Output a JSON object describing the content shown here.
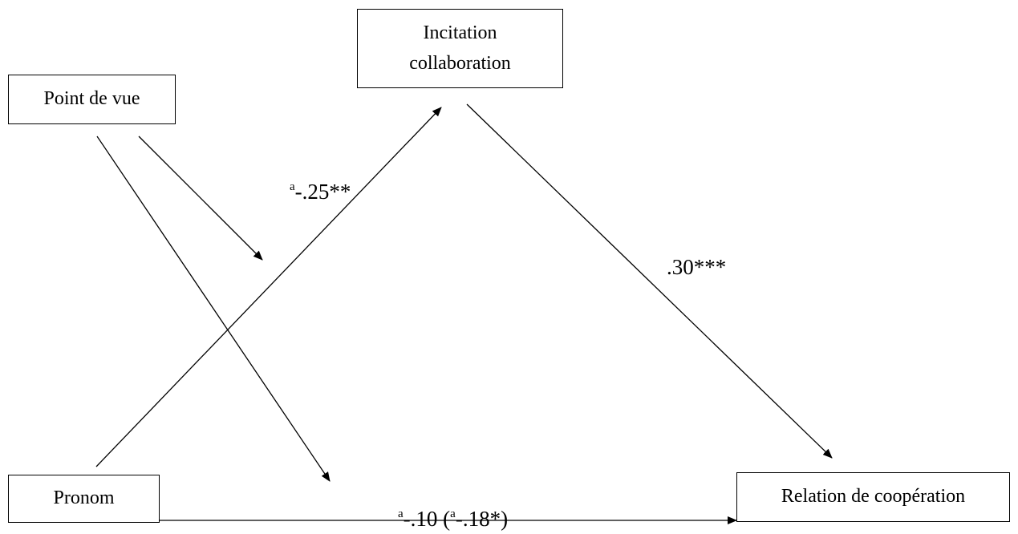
{
  "nodes": {
    "point_de_vue": "Point de vue",
    "incitation_line1": "Incitation",
    "incitation_line2": "collaboration",
    "pronom": "Pronom",
    "relation": "Relation de coopération"
  },
  "paths": {
    "a_prefix": "a",
    "a_value": "-.25**",
    "b_value": ".30***",
    "c_prefix": "a",
    "c_value": "-.10 (",
    "c_prefix2": "a",
    "c_value2": "-.18*)"
  }
}
